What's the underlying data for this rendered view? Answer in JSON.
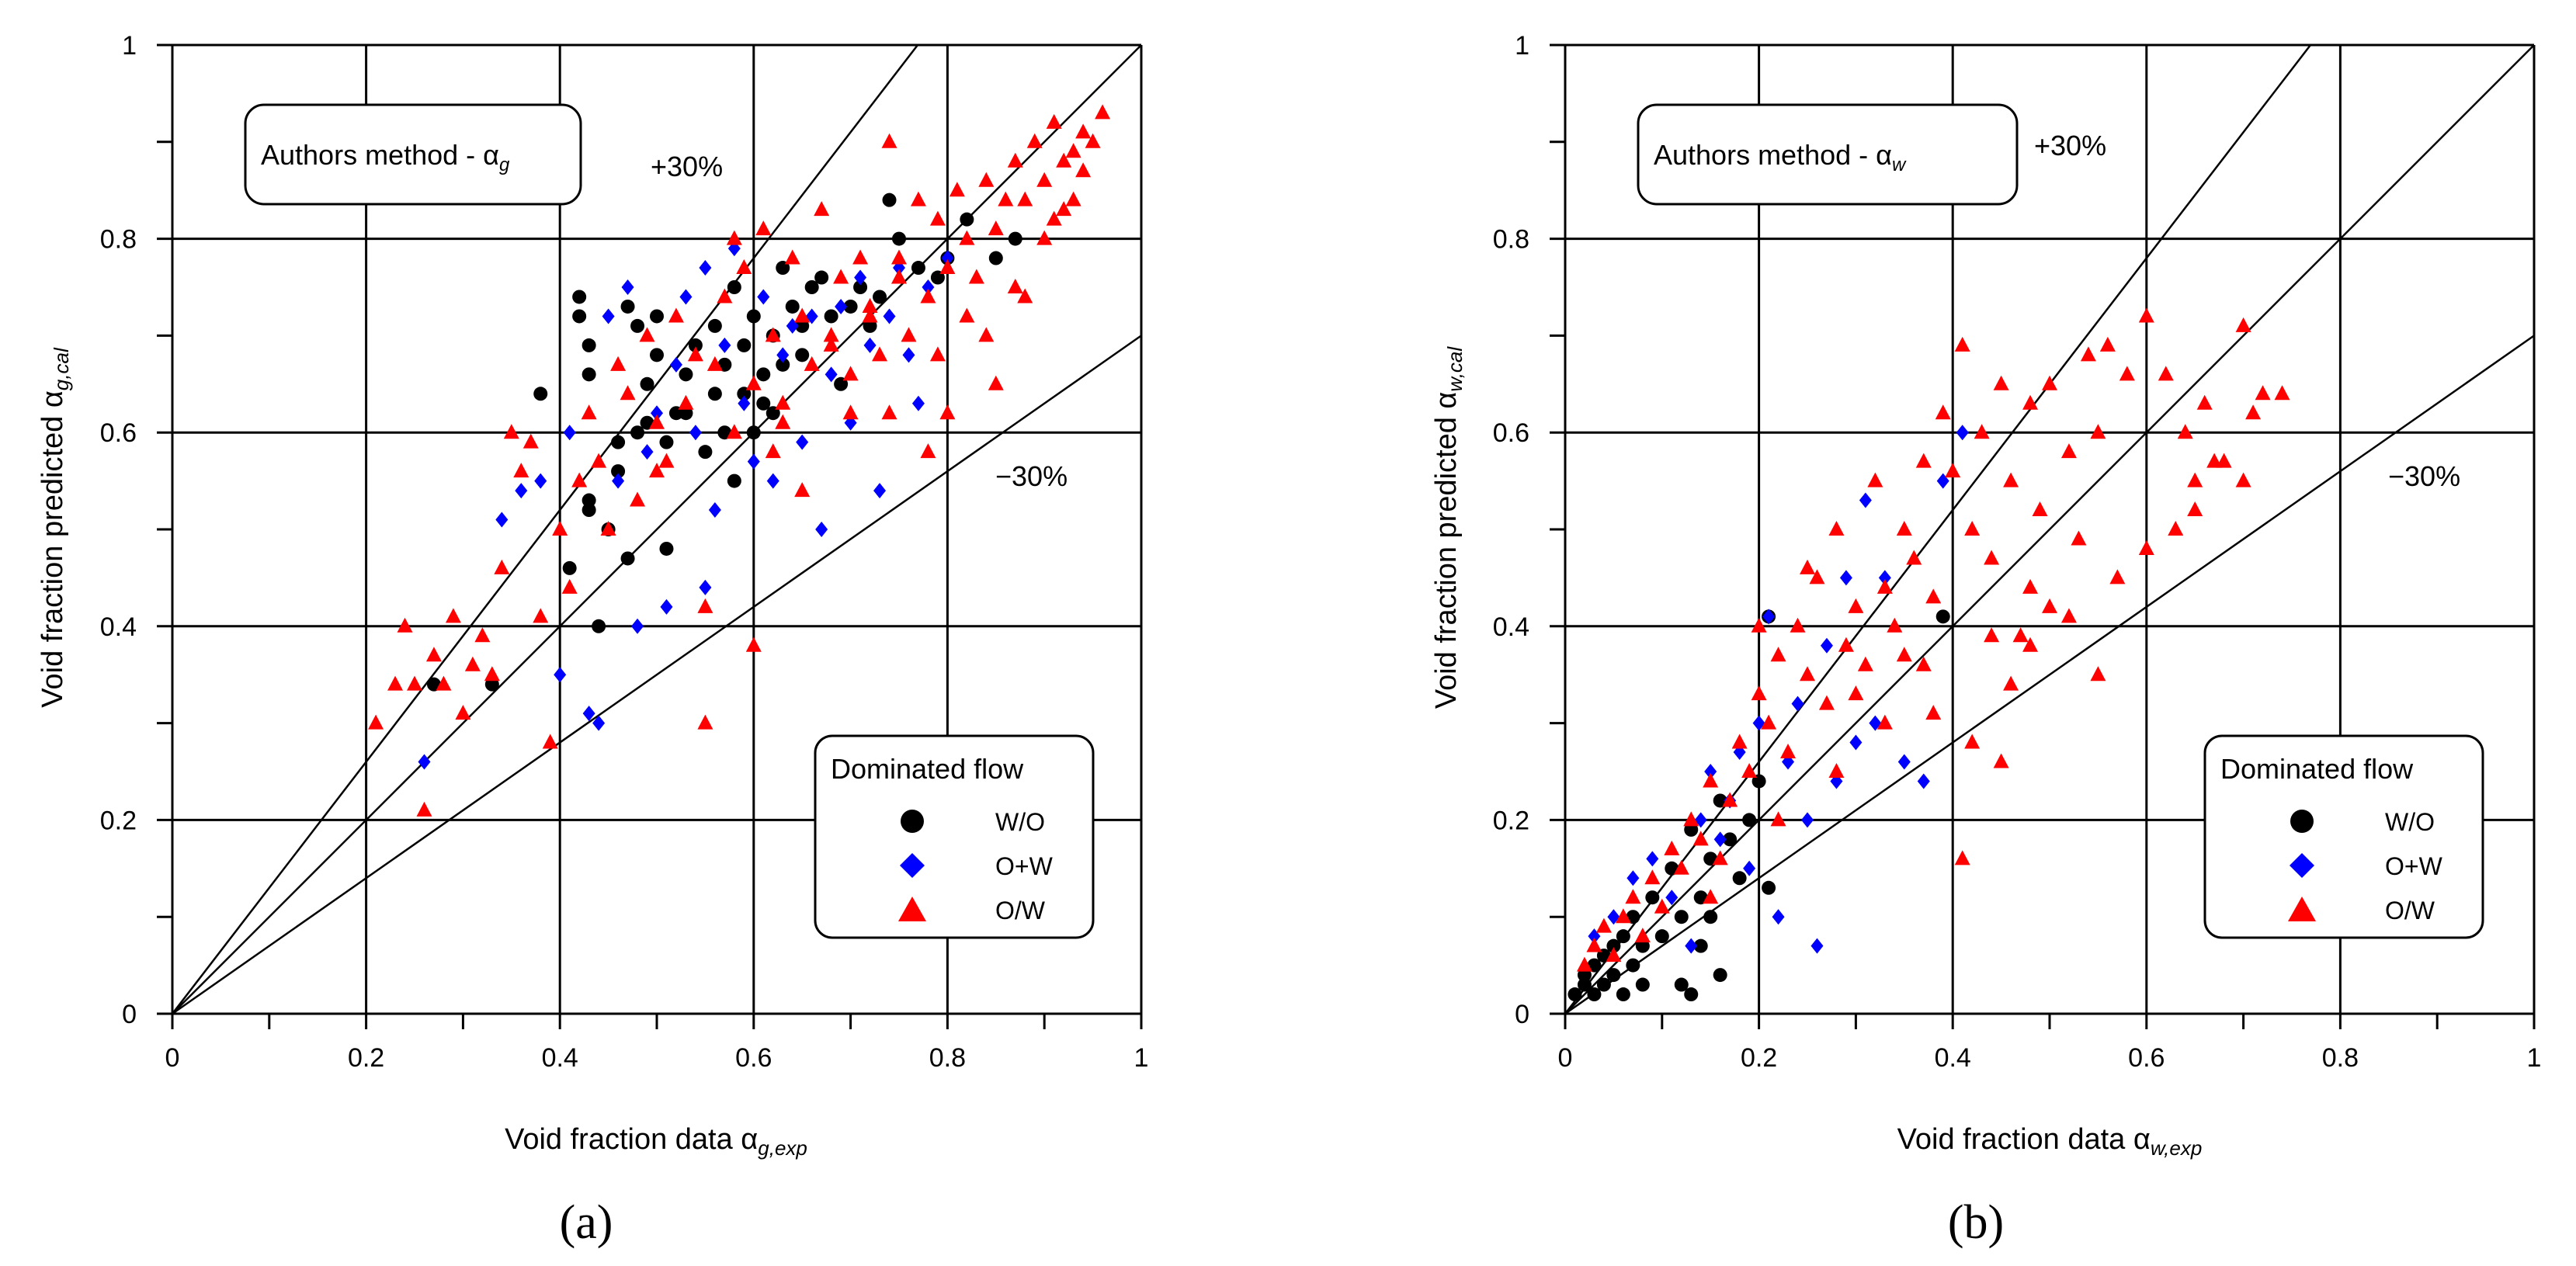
{
  "chart_data": [
    {
      "type": "scatter",
      "panel": "(a)",
      "box_main": "Authors method - α",
      "box_sub": "g",
      "xlabel_main": "Void fraction data α",
      "xlabel_sub": "g,exp",
      "ylabel_main": "Void fraction predicted α",
      "ylabel_sub": "g,cal",
      "xlim": [
        0,
        1
      ],
      "ylim": [
        0,
        1
      ],
      "xticks": [
        "0",
        "0.2",
        "0.4",
        "0.6",
        "0.8",
        "1"
      ],
      "yticks": [
        "0",
        "0.2",
        "0.4",
        "0.6",
        "0.8",
        "1"
      ],
      "grid": true,
      "reference_lines": [
        {
          "label": "+30%",
          "slope": 1.3
        },
        {
          "label": "",
          "slope": 1.0
        },
        {
          "label": "−30%",
          "slope": 0.7
        }
      ],
      "legend": {
        "title": "Dominated flow",
        "placement": "bottom-right"
      },
      "series": [
        {
          "name": "W/O",
          "marker": "circle",
          "color": "#000000",
          "x": [
            0.27,
            0.33,
            0.38,
            0.41,
            0.42,
            0.42,
            0.43,
            0.43,
            0.43,
            0.43,
            0.44,
            0.45,
            0.46,
            0.46,
            0.47,
            0.47,
            0.48,
            0.48,
            0.49,
            0.49,
            0.5,
            0.5,
            0.51,
            0.51,
            0.52,
            0.53,
            0.53,
            0.54,
            0.55,
            0.56,
            0.56,
            0.57,
            0.57,
            0.58,
            0.58,
            0.59,
            0.59,
            0.6,
            0.6,
            0.61,
            0.61,
            0.62,
            0.62,
            0.63,
            0.63,
            0.64,
            0.65,
            0.65,
            0.66,
            0.67,
            0.68,
            0.69,
            0.7,
            0.71,
            0.72,
            0.73,
            0.74,
            0.75,
            0.77,
            0.79,
            0.8,
            0.82,
            0.85,
            0.87
          ],
          "y": [
            0.34,
            0.34,
            0.64,
            0.46,
            0.72,
            0.74,
            0.52,
            0.69,
            0.66,
            0.53,
            0.4,
            0.5,
            0.59,
            0.56,
            0.73,
            0.47,
            0.6,
            0.71,
            0.65,
            0.61,
            0.68,
            0.72,
            0.59,
            0.48,
            0.62,
            0.66,
            0.62,
            0.69,
            0.58,
            0.64,
            0.71,
            0.67,
            0.6,
            0.75,
            0.55,
            0.64,
            0.69,
            0.72,
            0.6,
            0.66,
            0.63,
            0.7,
            0.62,
            0.67,
            0.77,
            0.73,
            0.68,
            0.71,
            0.75,
            0.76,
            0.72,
            0.65,
            0.73,
            0.75,
            0.71,
            0.74,
            0.84,
            0.8,
            0.77,
            0.76,
            0.78,
            0.82,
            0.78,
            0.8
          ]
        },
        {
          "name": "O+W",
          "marker": "diamond",
          "color": "#0000ff",
          "x": [
            0.26,
            0.34,
            0.36,
            0.38,
            0.4,
            0.41,
            0.43,
            0.44,
            0.45,
            0.46,
            0.47,
            0.48,
            0.49,
            0.5,
            0.51,
            0.52,
            0.53,
            0.54,
            0.55,
            0.55,
            0.56,
            0.57,
            0.58,
            0.59,
            0.6,
            0.61,
            0.62,
            0.63,
            0.64,
            0.65,
            0.66,
            0.67,
            0.68,
            0.69,
            0.7,
            0.71,
            0.72,
            0.73,
            0.74,
            0.75,
            0.76,
            0.77,
            0.78,
            0.8
          ],
          "y": [
            0.26,
            0.51,
            0.54,
            0.55,
            0.35,
            0.6,
            0.31,
            0.3,
            0.72,
            0.55,
            0.75,
            0.4,
            0.58,
            0.62,
            0.42,
            0.67,
            0.74,
            0.6,
            0.44,
            0.77,
            0.52,
            0.69,
            0.79,
            0.63,
            0.57,
            0.74,
            0.55,
            0.68,
            0.71,
            0.59,
            0.72,
            0.5,
            0.66,
            0.73,
            0.61,
            0.76,
            0.69,
            0.54,
            0.72,
            0.77,
            0.68,
            0.63,
            0.75,
            0.78
          ]
        },
        {
          "name": "O/W",
          "marker": "triangle",
          "color": "#ff0000",
          "x": [
            0.21,
            0.23,
            0.24,
            0.25,
            0.26,
            0.27,
            0.28,
            0.29,
            0.3,
            0.31,
            0.32,
            0.33,
            0.34,
            0.35,
            0.36,
            0.37,
            0.38,
            0.39,
            0.4,
            0.41,
            0.42,
            0.43,
            0.44,
            0.45,
            0.46,
            0.47,
            0.48,
            0.49,
            0.5,
            0.51,
            0.52,
            0.53,
            0.54,
            0.55,
            0.56,
            0.57,
            0.58,
            0.59,
            0.6,
            0.61,
            0.62,
            0.63,
            0.64,
            0.65,
            0.66,
            0.67,
            0.68,
            0.69,
            0.7,
            0.71,
            0.72,
            0.73,
            0.74,
            0.75,
            0.76,
            0.77,
            0.78,
            0.79,
            0.8,
            0.81,
            0.82,
            0.83,
            0.84,
            0.85,
            0.86,
            0.87,
            0.88,
            0.89,
            0.9,
            0.91,
            0.92,
            0.93,
            0.94,
            0.95,
            0.96,
            0.55,
            0.6,
            0.62,
            0.65,
            0.7,
            0.72,
            0.75,
            0.78,
            0.8,
            0.82,
            0.85,
            0.88,
            0.9,
            0.92,
            0.94,
            0.5,
            0.58,
            0.63,
            0.68,
            0.74,
            0.79,
            0.84,
            0.87,
            0.91,
            0.93
          ],
          "y": [
            0.3,
            0.34,
            0.4,
            0.34,
            0.21,
            0.37,
            0.34,
            0.41,
            0.31,
            0.36,
            0.39,
            0.35,
            0.46,
            0.6,
            0.56,
            0.59,
            0.41,
            0.28,
            0.5,
            0.44,
            0.55,
            0.62,
            0.57,
            0.5,
            0.67,
            0.64,
            0.53,
            0.7,
            0.61,
            0.57,
            0.72,
            0.63,
            0.68,
            0.3,
            0.67,
            0.74,
            0.6,
            0.77,
            0.65,
            0.81,
            0.7,
            0.63,
            0.78,
            0.72,
            0.67,
            0.83,
            0.7,
            0.76,
            0.62,
            0.78,
            0.73,
            0.68,
            0.9,
            0.76,
            0.7,
            0.84,
            0.74,
            0.82,
            0.77,
            0.85,
            0.8,
            0.76,
            0.86,
            0.81,
            0.84,
            0.88,
            0.84,
            0.9,
            0.86,
            0.92,
            0.88,
            0.89,
            0.91,
            0.9,
            0.93,
            0.42,
            0.38,
            0.58,
            0.54,
            0.66,
            0.72,
            0.78,
            0.58,
            0.62,
            0.72,
            0.65,
            0.74,
            0.8,
            0.83,
            0.87,
            0.56,
            0.8,
            0.61,
            0.69,
            0.62,
            0.68,
            0.7,
            0.75,
            0.82,
            0.84
          ]
        }
      ]
    },
    {
      "type": "scatter",
      "panel": "(b)",
      "box_main": "Authors method - α",
      "box_sub": "w",
      "xlabel_main": "Void fraction data α",
      "xlabel_sub": "w,exp",
      "ylabel_main": "Void fraction predicted α",
      "ylabel_sub": "w,cal",
      "xlim": [
        0,
        1
      ],
      "ylim": [
        0,
        1
      ],
      "xticks": [
        "0",
        "0.2",
        "0.4",
        "0.6",
        "0.8",
        "1"
      ],
      "yticks": [
        "0",
        "0.2",
        "0.4",
        "0.6",
        "0.8",
        "1"
      ],
      "grid": true,
      "reference_lines": [
        {
          "label": "+30%",
          "slope": 1.3
        },
        {
          "label": "",
          "slope": 1.0
        },
        {
          "label": "−30%",
          "slope": 0.7
        }
      ],
      "legend": {
        "title": "Dominated flow",
        "placement": "bottom-right"
      },
      "series": [
        {
          "name": "W/O",
          "marker": "circle",
          "color": "#000000",
          "x": [
            0.01,
            0.02,
            0.02,
            0.03,
            0.03,
            0.04,
            0.04,
            0.05,
            0.05,
            0.06,
            0.06,
            0.07,
            0.07,
            0.08,
            0.08,
            0.09,
            0.1,
            0.11,
            0.12,
            0.12,
            0.13,
            0.13,
            0.14,
            0.14,
            0.15,
            0.15,
            0.16,
            0.16,
            0.17,
            0.18,
            0.19,
            0.2,
            0.21,
            0.21,
            0.39
          ],
          "y": [
            0.02,
            0.04,
            0.03,
            0.05,
            0.02,
            0.06,
            0.03,
            0.07,
            0.04,
            0.08,
            0.02,
            0.05,
            0.1,
            0.07,
            0.03,
            0.12,
            0.08,
            0.15,
            0.1,
            0.03,
            0.19,
            0.02,
            0.12,
            0.07,
            0.16,
            0.1,
            0.22,
            0.04,
            0.18,
            0.14,
            0.2,
            0.24,
            0.13,
            0.41,
            0.41
          ]
        },
        {
          "name": "O+W",
          "marker": "diamond",
          "color": "#0000ff",
          "x": [
            0.03,
            0.05,
            0.07,
            0.09,
            0.11,
            0.13,
            0.14,
            0.15,
            0.16,
            0.17,
            0.18,
            0.19,
            0.2,
            0.21,
            0.22,
            0.23,
            0.24,
            0.25,
            0.26,
            0.27,
            0.28,
            0.29,
            0.3,
            0.31,
            0.32,
            0.33,
            0.35,
            0.37,
            0.39,
            0.41
          ],
          "y": [
            0.08,
            0.1,
            0.14,
            0.16,
            0.12,
            0.07,
            0.2,
            0.25,
            0.18,
            0.22,
            0.27,
            0.15,
            0.3,
            0.41,
            0.1,
            0.26,
            0.32,
            0.2,
            0.07,
            0.38,
            0.24,
            0.45,
            0.28,
            0.53,
            0.3,
            0.45,
            0.26,
            0.24,
            0.55,
            0.6
          ]
        },
        {
          "name": "O/W",
          "marker": "triangle",
          "color": "#ff0000",
          "x": [
            0.02,
            0.03,
            0.04,
            0.05,
            0.06,
            0.07,
            0.08,
            0.09,
            0.1,
            0.11,
            0.12,
            0.13,
            0.14,
            0.15,
            0.16,
            0.17,
            0.18,
            0.19,
            0.2,
            0.21,
            0.22,
            0.23,
            0.24,
            0.25,
            0.26,
            0.27,
            0.28,
            0.29,
            0.3,
            0.31,
            0.32,
            0.33,
            0.34,
            0.35,
            0.36,
            0.37,
            0.38,
            0.39,
            0.4,
            0.41,
            0.42,
            0.43,
            0.44,
            0.45,
            0.46,
            0.47,
            0.48,
            0.49,
            0.5,
            0.52,
            0.54,
            0.55,
            0.56,
            0.58,
            0.6,
            0.62,
            0.64,
            0.65,
            0.66,
            0.68,
            0.7,
            0.72,
            0.74,
            0.41,
            0.45,
            0.48,
            0.5,
            0.55,
            0.6,
            0.65,
            0.7,
            0.2,
            0.25,
            0.3,
            0.35,
            0.38,
            0.42,
            0.46,
            0.52,
            0.57,
            0.63,
            0.67,
            0.71,
            0.15,
            0.22,
            0.28,
            0.33,
            0.37,
            0.44,
            0.48,
            0.53
          ],
          "y": [
            0.05,
            0.07,
            0.09,
            0.06,
            0.1,
            0.12,
            0.08,
            0.14,
            0.11,
            0.17,
            0.15,
            0.2,
            0.18,
            0.24,
            0.16,
            0.22,
            0.28,
            0.25,
            0.33,
            0.3,
            0.37,
            0.27,
            0.4,
            0.35,
            0.45,
            0.32,
            0.5,
            0.38,
            0.42,
            0.36,
            0.55,
            0.44,
            0.4,
            0.5,
            0.47,
            0.57,
            0.43,
            0.62,
            0.56,
            0.69,
            0.5,
            0.6,
            0.47,
            0.65,
            0.55,
            0.39,
            0.63,
            0.52,
            0.65,
            0.58,
            0.68,
            0.6,
            0.69,
            0.66,
            0.72,
            0.66,
            0.6,
            0.55,
            0.63,
            0.57,
            0.71,
            0.64,
            0.64,
            0.16,
            0.26,
            0.38,
            0.42,
            0.35,
            0.48,
            0.52,
            0.55,
            0.4,
            0.46,
            0.33,
            0.37,
            0.31,
            0.28,
            0.34,
            0.41,
            0.45,
            0.5,
            0.57,
            0.62,
            0.12,
            0.2,
            0.25,
            0.3,
            0.36,
            0.39,
            0.44,
            0.49
          ]
        }
      ]
    }
  ],
  "colors": {
    "wo": "#000000",
    "ow_blue": "#0000ff",
    "ow_red": "#ff0000"
  }
}
